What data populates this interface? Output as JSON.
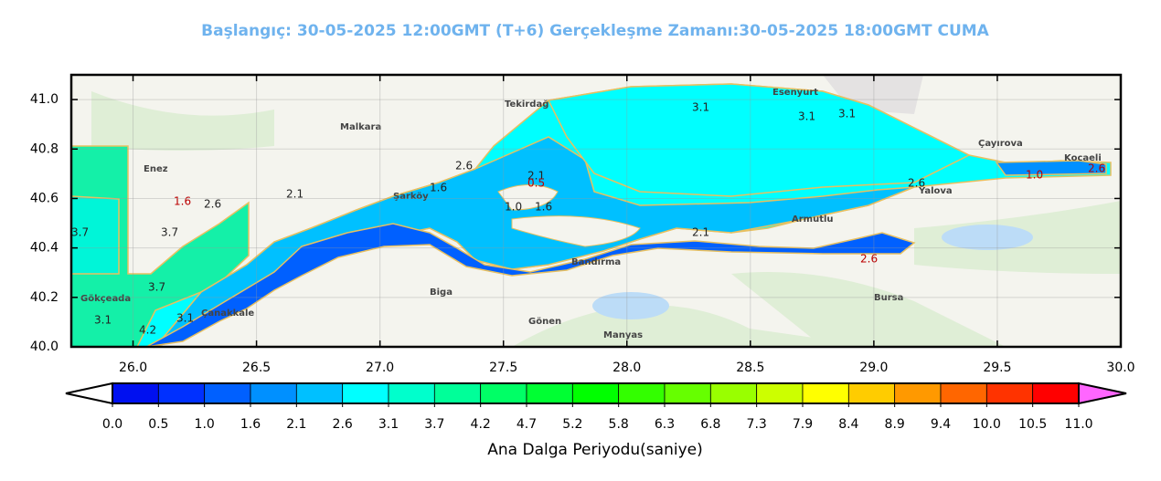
{
  "header": {
    "title": "Başlangıç: 30-05-2025 12:00GMT (T+6)  Gerçekleşme Zamanı:30-05-2025 18:00GMT CUMA"
  },
  "map": {
    "xlim": [
      25.75,
      30.0
    ],
    "ylim": [
      40.0,
      41.1
    ],
    "xticks": [
      {
        "value": 26.0,
        "label": "26.0"
      },
      {
        "value": 26.5,
        "label": "26.5"
      },
      {
        "value": 27.0,
        "label": "27.0"
      },
      {
        "value": 27.5,
        "label": "27.5"
      },
      {
        "value": 28.0,
        "label": "28.0"
      },
      {
        "value": 28.5,
        "label": "28.5"
      },
      {
        "value": 29.0,
        "label": "29.0"
      },
      {
        "value": 29.5,
        "label": "29.5"
      },
      {
        "value": 30.0,
        "label": "30.0"
      }
    ],
    "yticks": [
      {
        "value": 40.0,
        "label": "40.0"
      },
      {
        "value": 40.2,
        "label": "40.2"
      },
      {
        "value": 40.4,
        "label": "40.4"
      },
      {
        "value": 40.6,
        "label": "40.6"
      },
      {
        "value": 40.8,
        "label": "40.8"
      },
      {
        "value": 41.0,
        "label": "41.0"
      }
    ],
    "grid": true,
    "places": [
      "Tekirdağ",
      "Çanakkale",
      "Bursa",
      "Yalova",
      "Kocaeli",
      "Bandırma",
      "Gönen",
      "Manyas",
      "Biga",
      "Malkara",
      "Enez",
      "Armutlu",
      "Çayırova",
      "Esenyurt",
      "Gökçeada",
      "Şarköy"
    ],
    "contour_labels": [
      "3.1",
      "3.1",
      "3.1",
      "2.6",
      "1.6",
      "2.1",
      "0.5",
      "1.0",
      "1.6",
      "2.1",
      "2.6",
      "1.6",
      "2.6",
      "2.1",
      "3.7",
      "3.7",
      "3.7",
      "3.1",
      "4.2",
      "3.1",
      "2.6",
      "1.0",
      "2.6"
    ]
  },
  "colorbar": {
    "label": "Ana Dalga Periyodu(saniye)",
    "ticks": [
      {
        "value": 0.0,
        "label": "0.0"
      },
      {
        "value": 0.5,
        "label": "0.5"
      },
      {
        "value": 1.0,
        "label": "1.0"
      },
      {
        "value": 1.6,
        "label": "1.6"
      },
      {
        "value": 2.1,
        "label": "2.1"
      },
      {
        "value": 2.6,
        "label": "2.6"
      },
      {
        "value": 3.1,
        "label": "3.1"
      },
      {
        "value": 3.7,
        "label": "3.7"
      },
      {
        "value": 4.2,
        "label": "4.2"
      },
      {
        "value": 4.7,
        "label": "4.7"
      },
      {
        "value": 5.2,
        "label": "5.2"
      },
      {
        "value": 5.8,
        "label": "5.8"
      },
      {
        "value": 6.3,
        "label": "6.3"
      },
      {
        "value": 6.8,
        "label": "6.8"
      },
      {
        "value": 7.3,
        "label": "7.3"
      },
      {
        "value": 7.9,
        "label": "7.9"
      },
      {
        "value": 8.4,
        "label": "8.4"
      },
      {
        "value": 8.9,
        "label": "8.9"
      },
      {
        "value": 9.4,
        "label": "9.4"
      },
      {
        "value": 10.0,
        "label": "10.0"
      },
      {
        "value": 10.5,
        "label": "10.5"
      },
      {
        "value": 11.0,
        "label": "11.0"
      }
    ],
    "colors": [
      "#0010f0",
      "#0030ff",
      "#0060ff",
      "#0090ff",
      "#00c0ff",
      "#00ffff",
      "#00ffcc",
      "#00ff99",
      "#00ff66",
      "#00ff33",
      "#00ff00",
      "#33ff00",
      "#66ff00",
      "#99ff00",
      "#ccff00",
      "#ffff00",
      "#ffcc00",
      "#ff9900",
      "#ff6600",
      "#ff3300",
      "#ff0000"
    ],
    "under_color": "#ffffff",
    "over_color": "#ff66ff"
  }
}
